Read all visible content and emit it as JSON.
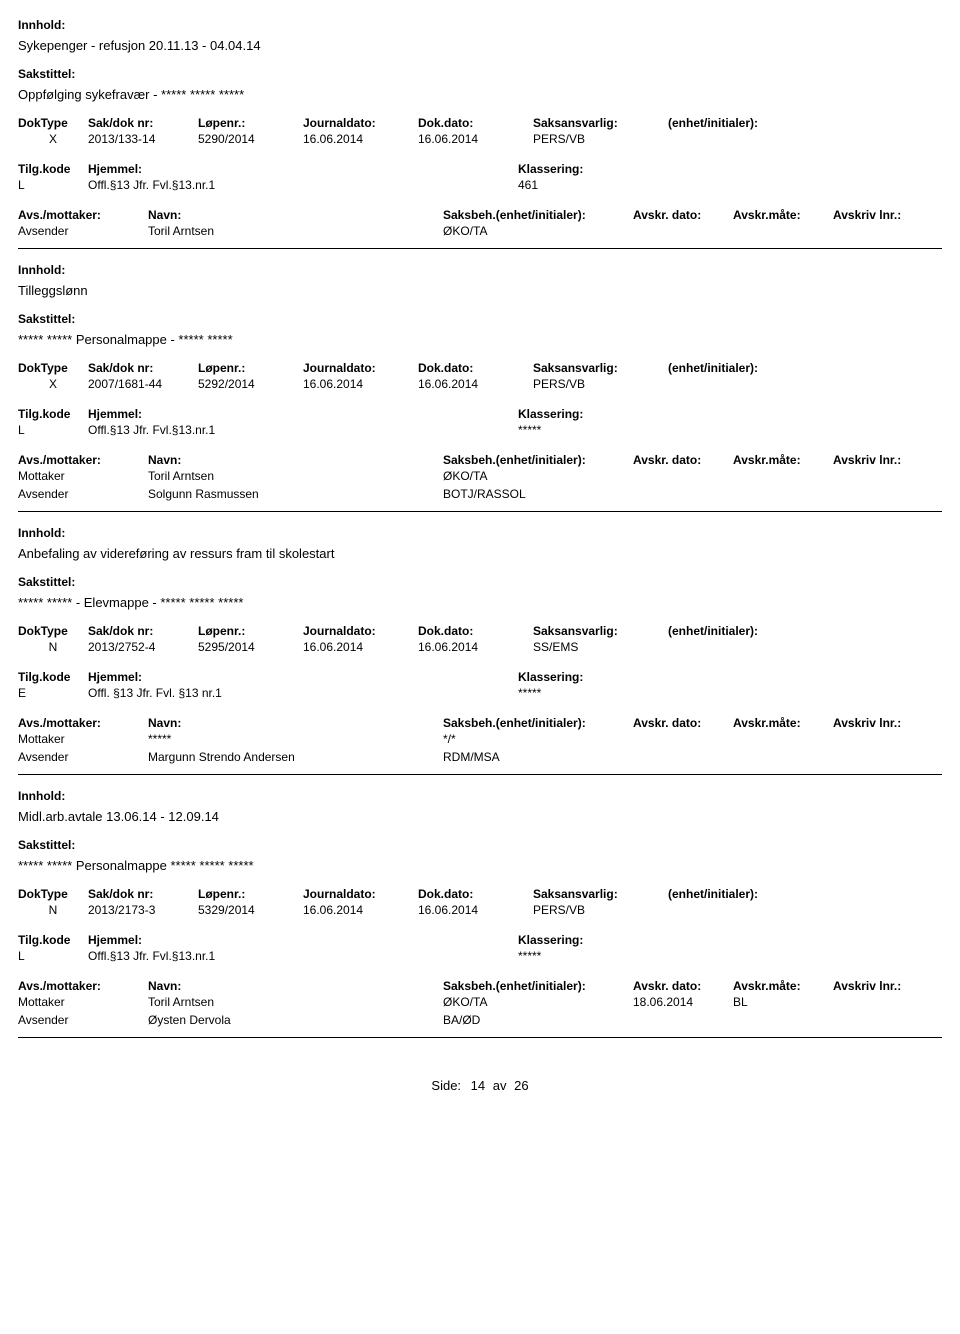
{
  "labels": {
    "innhold": "Innhold:",
    "sakstittel": "Sakstittel:",
    "doktype": "DokType",
    "sakdok": "Sak/dok nr:",
    "lopenr": "Løpenr.:",
    "journaldato": "Journaldato:",
    "dokdato": "Dok.dato:",
    "saksansvarlig": "Saksansvarlig:",
    "enhet": "(enhet/initialer):",
    "tilgkode": "Tilg.kode",
    "hjemmel": "Hjemmel:",
    "klassering": "Klassering:",
    "avsmottaker": "Avs./mottaker:",
    "navn": "Navn:",
    "saksbeh": "Saksbeh.(enhet/initialer):",
    "avskrdato": "Avskr. dato:",
    "avskrmate": "Avskr.måte:",
    "avskrlnr": "Avskriv lnr.:",
    "side": "Side:",
    "av": "av"
  },
  "footer": {
    "page": "14",
    "total": "26"
  },
  "records": [
    {
      "innhold": "Sykepenger - refusjon 20.11.13 - 04.04.14",
      "sakstittel": "Oppfølging sykefravær - ***** ***** *****",
      "doktype": "X",
      "sakdok": "2013/133-14",
      "lopenr": "5290/2014",
      "journaldato": "16.06.2014",
      "dokdato": "16.06.2014",
      "saksansvarlig": "PERS/VB",
      "enhet": "",
      "tilgkode": "L",
      "hjemmel": "Offl.§13 Jfr. Fvl.§13.nr.1",
      "klassering": "461",
      "parties": [
        {
          "role": "Avsender",
          "name": "Toril Arntsen",
          "code": "ØKO/TA",
          "avskrdato": "",
          "avskrmate": "",
          "avskrlnr": ""
        }
      ]
    },
    {
      "innhold": "Tilleggslønn",
      "sakstittel": "***** ***** Personalmappe - ***** *****",
      "doktype": "X",
      "sakdok": "2007/1681-44",
      "lopenr": "5292/2014",
      "journaldato": "16.06.2014",
      "dokdato": "16.06.2014",
      "saksansvarlig": "PERS/VB",
      "enhet": "",
      "tilgkode": "L",
      "hjemmel": "Offl.§13 Jfr. Fvl.§13.nr.1",
      "klassering": "*****",
      "parties": [
        {
          "role": "Mottaker",
          "name": "Toril Arntsen",
          "code": "ØKO/TA",
          "avskrdato": "",
          "avskrmate": "",
          "avskrlnr": ""
        },
        {
          "role": "Avsender",
          "name": "Solgunn Rasmussen",
          "code": "BOTJ/RASSOL",
          "avskrdato": "",
          "avskrmate": "",
          "avskrlnr": ""
        }
      ]
    },
    {
      "innhold": "Anbefaling av videreføring av ressurs fram til skolestart",
      "sakstittel": "***** ***** - Elevmappe - ***** ***** *****",
      "doktype": "N",
      "sakdok": "2013/2752-4",
      "lopenr": "5295/2014",
      "journaldato": "16.06.2014",
      "dokdato": "16.06.2014",
      "saksansvarlig": "SS/EMS",
      "enhet": "",
      "tilgkode": "E",
      "hjemmel": "Offl. §13 Jfr. Fvl. §13 nr.1",
      "klassering": "*****",
      "parties": [
        {
          "role": "Mottaker",
          "name": "*****",
          "code": "*/*",
          "avskrdato": "",
          "avskrmate": "",
          "avskrlnr": ""
        },
        {
          "role": "Avsender",
          "name": "Margunn Strendo Andersen",
          "code": "RDM/MSA",
          "avskrdato": "",
          "avskrmate": "",
          "avskrlnr": ""
        }
      ]
    },
    {
      "innhold": "Midl.arb.avtale 13.06.14 - 12.09.14",
      "sakstittel": "***** ***** Personalmappe ***** ***** *****",
      "doktype": "N",
      "sakdok": "2013/2173-3",
      "lopenr": "5329/2014",
      "journaldato": "16.06.2014",
      "dokdato": "16.06.2014",
      "saksansvarlig": "PERS/VB",
      "enhet": "",
      "tilgkode": "L",
      "hjemmel": "Offl.§13 Jfr. Fvl.§13.nr.1",
      "klassering": "*****",
      "parties": [
        {
          "role": "Mottaker",
          "name": "Toril Arntsen",
          "code": "ØKO/TA",
          "avskrdato": "18.06.2014",
          "avskrmate": "BL",
          "avskrlnr": ""
        },
        {
          "role": "Avsender",
          "name": "Øysten Dervola",
          "code": "BA/ØD",
          "avskrdato": "",
          "avskrmate": "",
          "avskrlnr": ""
        }
      ]
    }
  ]
}
